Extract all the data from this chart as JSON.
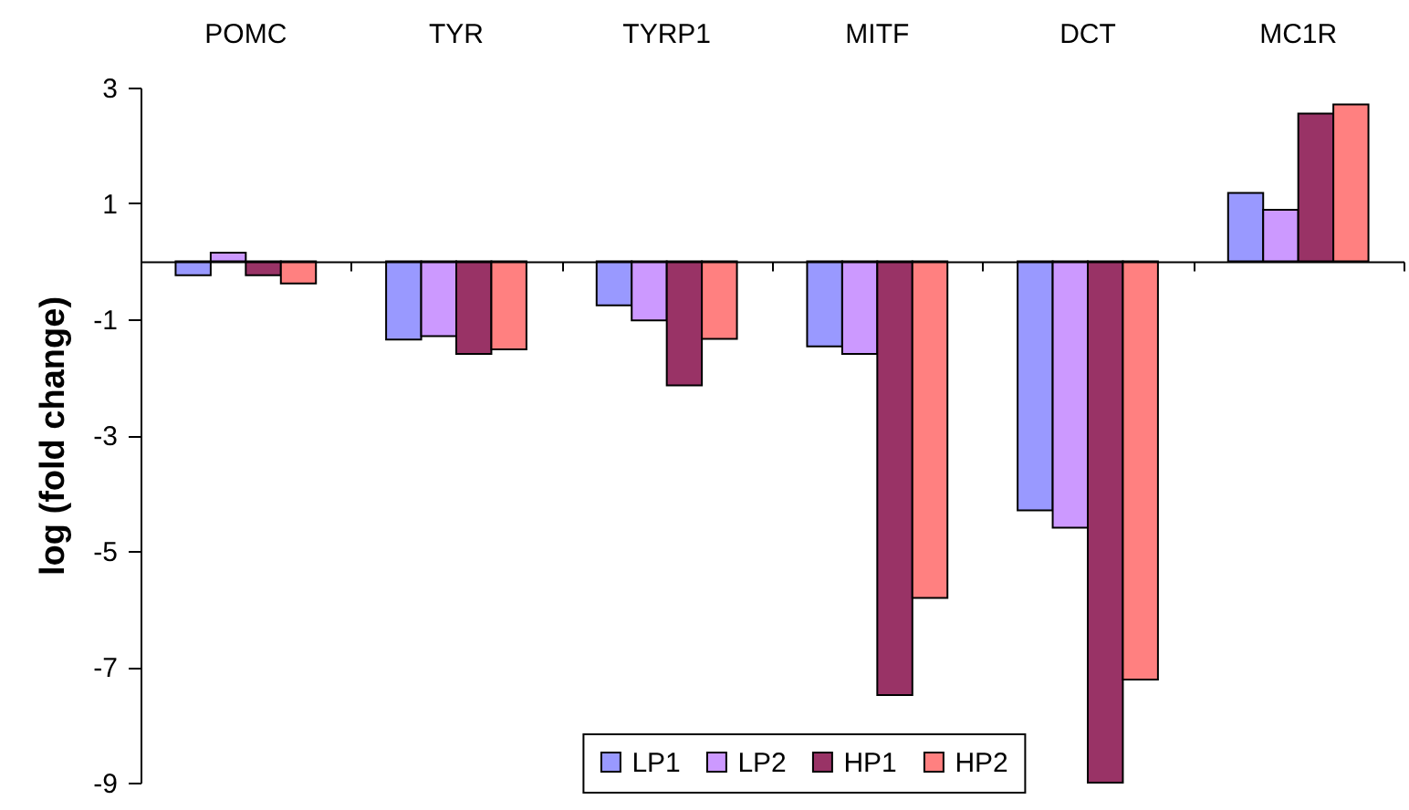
{
  "chart_data": {
    "type": "bar",
    "ylabel": "log (fold change)",
    "categories": [
      "POMC",
      "TYR",
      "TYRP1",
      "MITF",
      "DCT",
      "MC1R"
    ],
    "series": [
      {
        "name": "LP1",
        "color": "#9999ff",
        "values": [
          -0.24,
          -1.35,
          -0.76,
          -1.47,
          -4.3,
          1.18
        ]
      },
      {
        "name": "LP2",
        "color": "#cc99ff",
        "values": [
          0.15,
          -1.29,
          -1.02,
          -1.6,
          -4.6,
          0.89
        ]
      },
      {
        "name": "HP1",
        "color": "#993366",
        "values": [
          -0.24,
          -1.6,
          -2.14,
          -7.49,
          -9.0,
          2.55
        ]
      },
      {
        "name": "HP2",
        "color": "#ff8080",
        "values": [
          -0.38,
          -1.52,
          -1.34,
          -5.81,
          -7.22,
          2.71
        ]
      }
    ],
    "ylim": [
      -9,
      3
    ],
    "yticks": [
      -9,
      -7,
      -5,
      -3,
      -1,
      1,
      3
    ],
    "grid": false,
    "legend": "bottom"
  }
}
